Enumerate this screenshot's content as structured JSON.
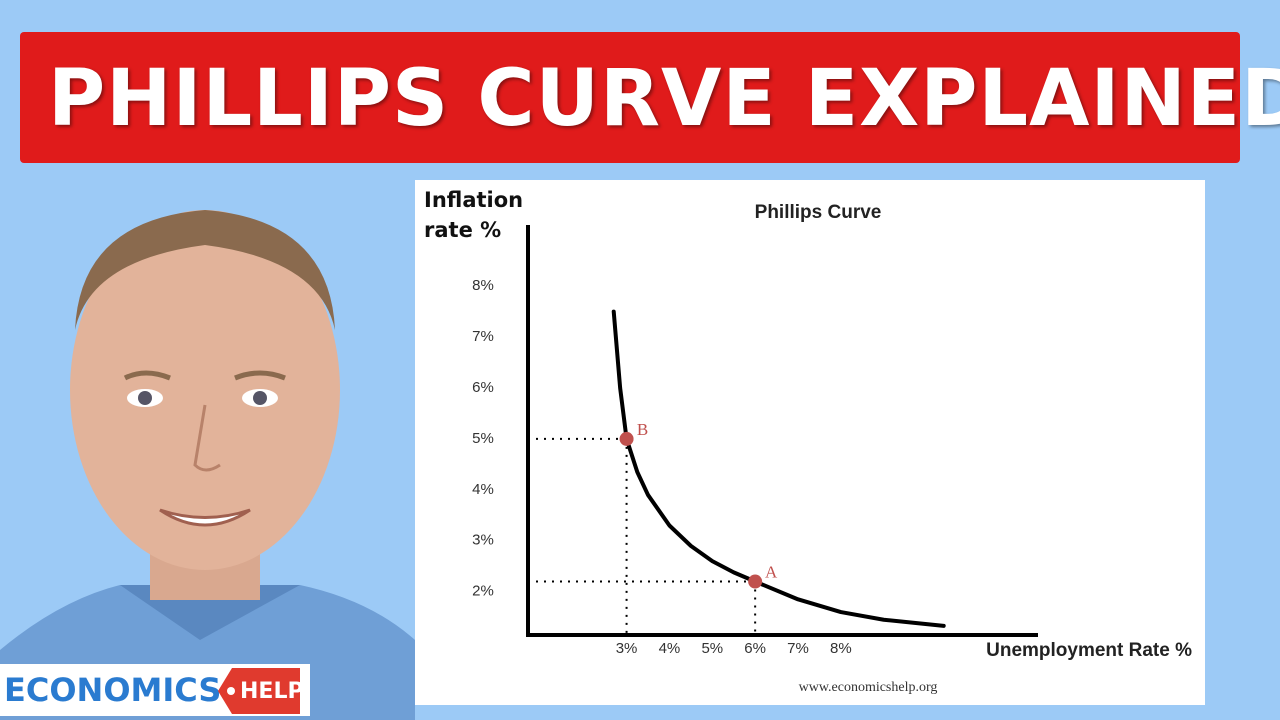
{
  "banner": "PHILLIPS CURVE EXPLAINED",
  "logo": {
    "left": "ECONOMICS",
    "right": "HELP"
  },
  "chart_data": {
    "type": "line",
    "title": "Phillips Curve",
    "ylabel": "Inflation rate %",
    "xlabel": "Unemployment Rate %",
    "source": "www.economicshelp.org",
    "x": [
      2.7,
      2.85,
      3,
      3.25,
      3.5,
      4,
      4.5,
      5,
      5.5,
      6,
      7,
      8,
      9,
      10.4
    ],
    "series": [
      {
        "color": "#000000",
        "values": [
          7.5,
          6.0,
          5,
          4.35,
          3.9,
          3.3,
          2.9,
          2.6,
          2.38,
          2.2,
          1.85,
          1.6,
          1.45,
          1.33
        ]
      }
    ],
    "points": [
      {
        "label": "B",
        "x": 3,
        "y": 5
      },
      {
        "label": "A",
        "x": 6,
        "y": 2.2
      }
    ],
    "point_color": "#c0504d",
    "xlim": [
      0.7,
      12.6
    ],
    "ylim": [
      1.15,
      9.2
    ],
    "xticks": [
      {
        "value": 3,
        "label": "3%"
      },
      {
        "value": 4,
        "label": "4%"
      },
      {
        "value": 5,
        "label": "5%"
      },
      {
        "value": 6,
        "label": "6%"
      },
      {
        "value": 7,
        "label": "7%"
      },
      {
        "value": 8,
        "label": "8%"
      }
    ],
    "yticks": [
      {
        "value": 2,
        "label": "2%"
      },
      {
        "value": 3,
        "label": "3%"
      },
      {
        "value": 4,
        "label": "4%"
      },
      {
        "value": 5,
        "label": "5%"
      },
      {
        "value": 6,
        "label": "6%"
      },
      {
        "value": 7,
        "label": "7%"
      },
      {
        "value": 8,
        "label": "8%"
      }
    ],
    "grid": false
  }
}
